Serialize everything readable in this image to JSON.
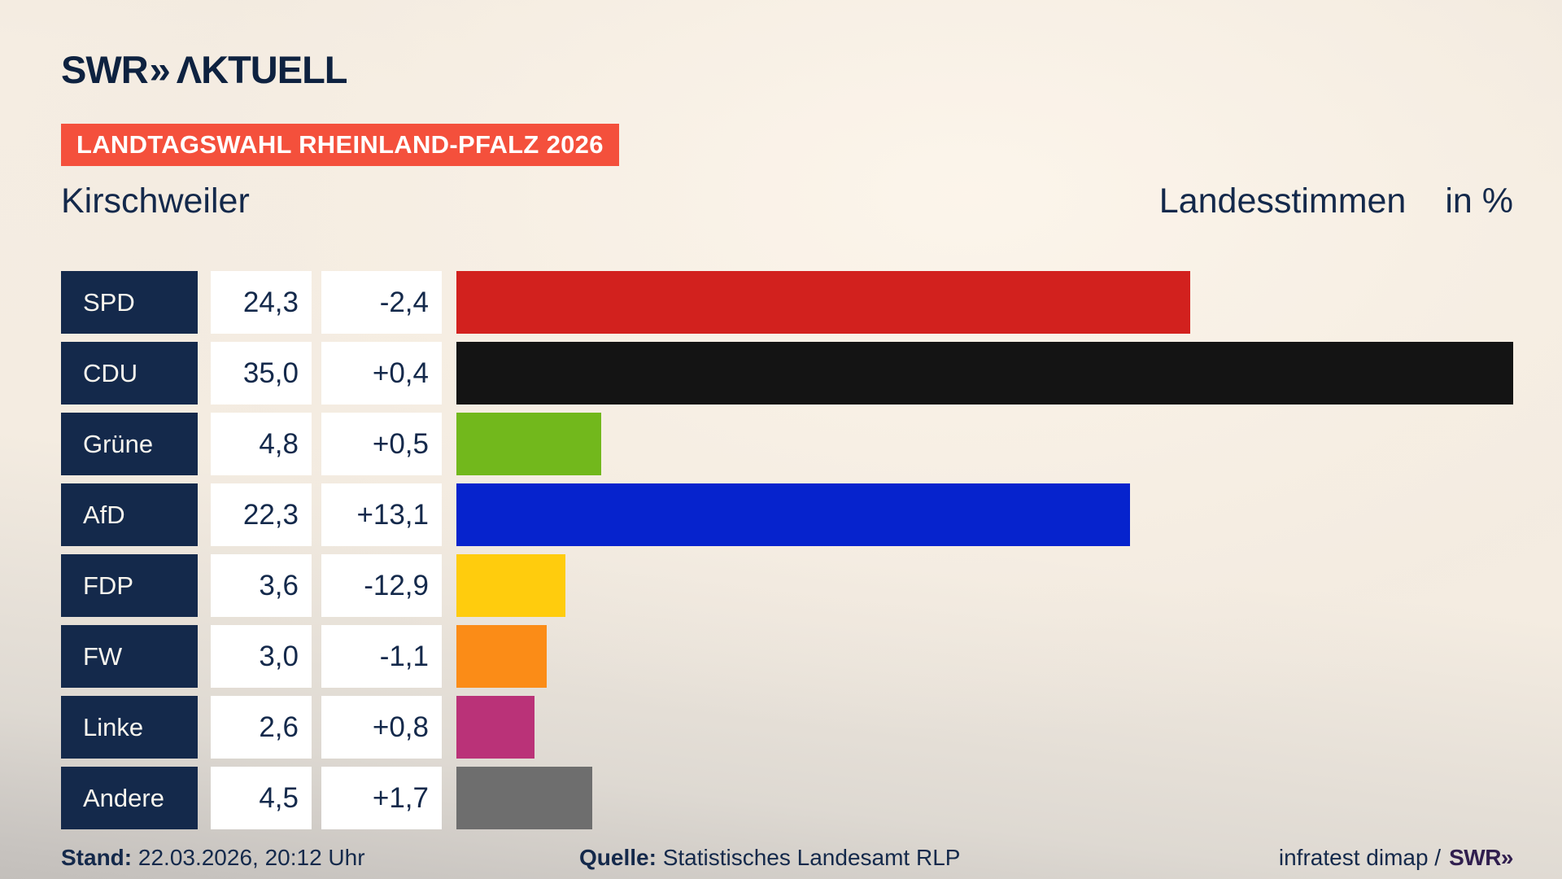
{
  "brand": {
    "name": "SWR",
    "chevrons": "»",
    "suffix": "ΛKTUELL"
  },
  "banner": {
    "label": "LANDTAGSWAHL RHEINLAND-PFALZ 2026"
  },
  "header": {
    "municipality": "Kirschweiler",
    "measure": "Landesstimmen",
    "unit": "in %"
  },
  "colors": {
    "navy": "#14294B",
    "logo_navy": "#0E2240",
    "banner_red": "#F4503C",
    "box_white": "#FFFFFF",
    "footer_logo_purple": "#301E4E"
  },
  "chart_data": {
    "type": "bar",
    "orientation": "horizontal",
    "title": "Landtagswahl Rheinland-Pfalz 2026 – Kirschweiler – Landesstimmen in %",
    "value_max": 35.0,
    "xlim": [
      0,
      35.0
    ],
    "grid": false,
    "legend": "none",
    "rows": [
      {
        "party": "SPD",
        "value": "24,3",
        "value_num": 24.3,
        "change": "-2,4",
        "color": "#D2211E"
      },
      {
        "party": "CDU",
        "value": "35,0",
        "value_num": 35.0,
        "change": "+0,4",
        "color": "#141414"
      },
      {
        "party": "Grüne",
        "value": "4,8",
        "value_num": 4.8,
        "change": "+0,5",
        "color": "#72B81C"
      },
      {
        "party": "AfD",
        "value": "22,3",
        "value_num": 22.3,
        "change": "+13,1",
        "color": "#0623CD"
      },
      {
        "party": "FDP",
        "value": "3,6",
        "value_num": 3.6,
        "change": "-12,9",
        "color": "#FFCC0D"
      },
      {
        "party": "FW",
        "value": "3,0",
        "value_num": 3.0,
        "change": "-1,1",
        "color": "#FB8C17"
      },
      {
        "party": "Linke",
        "value": "2,6",
        "value_num": 2.6,
        "change": "+0,8",
        "color": "#BA3278"
      },
      {
        "party": "Andere",
        "value": "4,5",
        "value_num": 4.5,
        "change": "+1,7",
        "color": "#6E6E6E"
      }
    ]
  },
  "footer": {
    "stand_label": "Stand:",
    "stand_value": "22.03.2026, 20:12 Uhr",
    "quelle_label": "Quelle:",
    "quelle_value": "Statistisches Landesamt RLP",
    "credit": "infratest dimap /",
    "credit_logo": "SWR»"
  }
}
